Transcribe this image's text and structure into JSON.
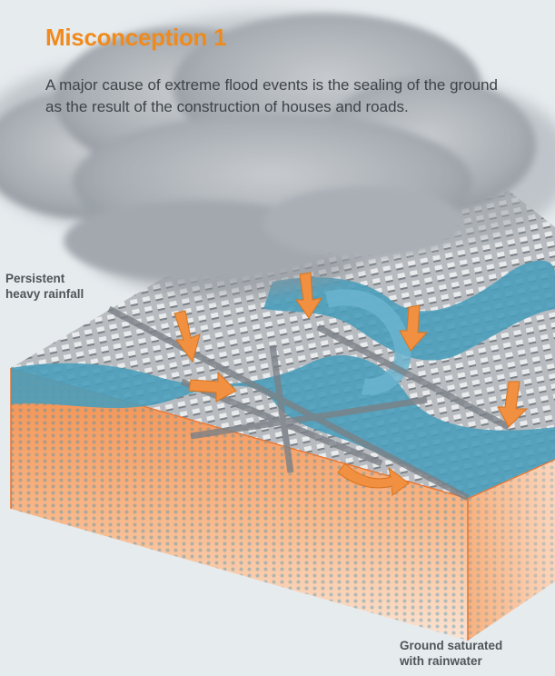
{
  "title": "Misconception 1",
  "body_text": "A major cause of extreme flood events is the sealing of the ground as the result of the construction of houses and roads.",
  "labels": {
    "rainfall_line1": "Persistent",
    "rainfall_line2": "heavy rainfall",
    "ground_line1": "Ground saturated",
    "ground_line2": "with rainwater"
  },
  "colors": {
    "accent": "#f08a1c",
    "water": "#4a9dbb",
    "cloud": "#9fa5ab",
    "soil": "#f6a36d"
  }
}
